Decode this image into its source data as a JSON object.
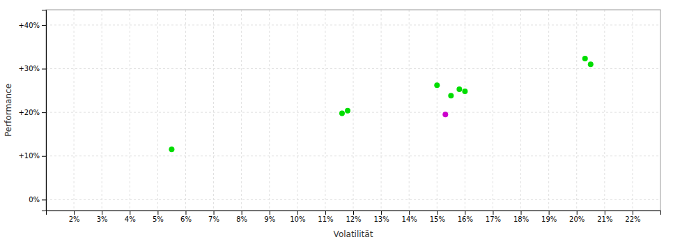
{
  "chart_data": {
    "type": "scatter",
    "xlabel": "Volatilität",
    "ylabel": "Performance",
    "x": [
      0.055,
      0.116,
      0.118,
      0.15,
      0.153,
      0.155,
      0.158,
      0.16,
      0.203,
      0.205
    ],
    "values": [
      0.115,
      0.198,
      0.204,
      0.262,
      0.195,
      0.238,
      0.253,
      0.248,
      0.323,
      0.31
    ],
    "colors": [
      "#00dd00",
      "#00dd00",
      "#00dd00",
      "#00dd00",
      "#cc00cc",
      "#00dd00",
      "#00dd00",
      "#00dd00",
      "#00dd00",
      "#00dd00"
    ],
    "xlim": [
      0.01,
      0.23
    ],
    "ylim": [
      -0.025,
      0.435
    ],
    "xticks": [
      {
        "value": 0.02,
        "label": "2%"
      },
      {
        "value": 0.03,
        "label": "3%"
      },
      {
        "value": 0.04,
        "label": "4%"
      },
      {
        "value": 0.05,
        "label": "5%"
      },
      {
        "value": 0.06,
        "label": "6%"
      },
      {
        "value": 0.07,
        "label": "7%"
      },
      {
        "value": 0.08,
        "label": "8%"
      },
      {
        "value": 0.09,
        "label": "9%"
      },
      {
        "value": 0.1,
        "label": "10%"
      },
      {
        "value": 0.11,
        "label": "11%"
      },
      {
        "value": 0.12,
        "label": "12%"
      },
      {
        "value": 0.13,
        "label": "13%"
      },
      {
        "value": 0.14,
        "label": "14%"
      },
      {
        "value": 0.15,
        "label": "15%"
      },
      {
        "value": 0.16,
        "label": "16%"
      },
      {
        "value": 0.17,
        "label": "17%"
      },
      {
        "value": 0.18,
        "label": "18%"
      },
      {
        "value": 0.19,
        "label": "19%"
      },
      {
        "value": 0.2,
        "label": "20%"
      },
      {
        "value": 0.21,
        "label": "21%"
      },
      {
        "value": 0.22,
        "label": "22%"
      }
    ],
    "yticks": [
      {
        "value": 0.0,
        "label": "0%"
      },
      {
        "value": 0.1,
        "label": "+10%"
      },
      {
        "value": 0.2,
        "label": "+20%"
      },
      {
        "value": 0.3,
        "label": "+30%"
      },
      {
        "value": 0.4,
        "label": "+40%"
      }
    ],
    "grid": true
  }
}
